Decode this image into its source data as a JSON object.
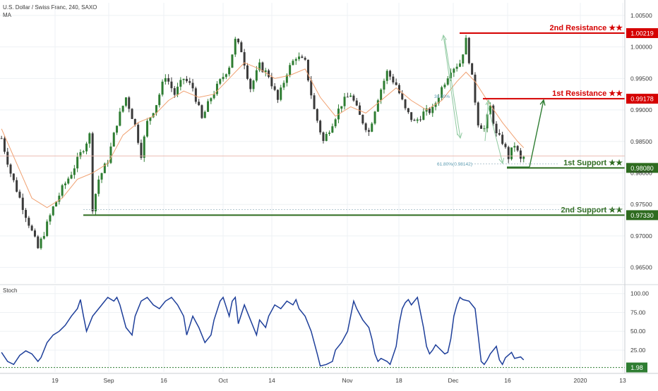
{
  "header": {
    "symbol_line": "U.S. Dollar / Swiss Franc, 240, SAXO",
    "indicator_line": "MA"
  },
  "stoch_pane": {
    "title": "Stoch",
    "current_value_label": "1.98"
  },
  "colors": {
    "candle_up": "#2e7d32",
    "candle_down": "#3a3a3a",
    "ma_line": "#f0a070",
    "stoch_line": "#1e3f9a",
    "resistance": "#d50000",
    "support": "#2e6b1f",
    "projection_green": "#2e7d32",
    "fib_label": "#5a9ab0",
    "grid": "#eef1f4",
    "axis_text": "#3a3a3a"
  },
  "chart_data": [
    {
      "type": "candlestick",
      "title": "U.S. Dollar / Swiss Franc, 240, SAXO",
      "price_axis_ticks": [
        "1.00500",
        "1.00000",
        "0.99500",
        "0.99000",
        "0.98500",
        "0.98000",
        "0.97500",
        "0.97000",
        "0.96500"
      ],
      "time_axis_labels": [
        "19",
        "Sep",
        "16",
        "Oct",
        "14",
        "Nov",
        "18",
        "Dec",
        "16",
        "2020",
        "13"
      ],
      "ylim": [
        0.9625,
        1.007
      ],
      "levels": [
        {
          "label": "2nd Resistance ★★",
          "value": 1.00219,
          "value_label": "1.00219",
          "kind": "resistance"
        },
        {
          "label": "1st Resistance ★★",
          "value": 0.99178,
          "value_label": "0.99178",
          "kind": "resistance"
        },
        {
          "label": "1st Support ★★",
          "value": 0.9808,
          "value_label": "0.98080",
          "kind": "support"
        },
        {
          "label": "2nd Support ★★",
          "value": 0.9733,
          "value_label": "0.97330",
          "kind": "support"
        }
      ],
      "fib_labels": [
        "38.20%",
        "61.80%(0.98142)"
      ],
      "closing_path": [
        [
          0,
          0.9855
        ],
        [
          3,
          0.98
        ],
        [
          6,
          0.976
        ],
        [
          9,
          0.972
        ],
        [
          12,
          0.968
        ],
        [
          14,
          0.9705
        ],
        [
          17,
          0.9745
        ],
        [
          20,
          0.9775
        ],
        [
          23,
          0.98
        ],
        [
          26,
          0.983
        ],
        [
          29,
          0.986
        ],
        [
          30,
          0.9745
        ],
        [
          32,
          0.979
        ],
        [
          35,
          0.982
        ],
        [
          38,
          0.988
        ],
        [
          41,
          0.992
        ],
        [
          44,
          0.9875
        ],
        [
          46,
          0.983
        ],
        [
          48,
          0.988
        ],
        [
          51,
          0.991
        ],
        [
          54,
          0.9955
        ],
        [
          57,
          0.9925
        ],
        [
          60,
          0.995
        ],
        [
          63,
          0.9935
        ],
        [
          66,
          0.9885
        ],
        [
          69,
          0.992
        ],
        [
          72,
          0.9945
        ],
        [
          75,
          0.997
        ],
        [
          77,
          1.001
        ],
        [
          79,
          0.9995
        ],
        [
          82,
          0.9935
        ],
        [
          85,
          0.997
        ],
        [
          88,
          0.9955
        ],
        [
          91,
          0.9915
        ],
        [
          94,
          0.996
        ],
        [
          97,
          0.9985
        ],
        [
          100,
          0.9975
        ],
        [
          103,
          0.99
        ],
        [
          106,
          0.985
        ],
        [
          109,
          0.988
        ],
        [
          112,
          0.991
        ],
        [
          115,
          0.9925
        ],
        [
          118,
          0.989
        ],
        [
          121,
          0.9865
        ],
        [
          124,
          0.992
        ],
        [
          127,
          0.996
        ],
        [
          130,
          0.994
        ],
        [
          133,
          0.99
        ],
        [
          136,
          0.988
        ],
        [
          139,
          0.9895
        ],
        [
          142,
          0.99
        ],
        [
          145,
          0.9935
        ],
        [
          148,
          0.9965
        ],
        [
          151,
          0.9975
        ],
        [
          153,
          1.001
        ],
        [
          155,
          0.995
        ],
        [
          157,
          0.988
        ],
        [
          159,
          0.987
        ],
        [
          161,
          0.9905
        ],
        [
          163,
          0.986
        ],
        [
          165,
          0.985
        ],
        [
          167,
          0.9825
        ],
        [
          169,
          0.9845
        ],
        [
          171,
          0.982
        ],
        [
          172,
          0.9825
        ]
      ],
      "ma_path": [
        [
          0,
          0.987
        ],
        [
          5,
          0.9815
        ],
        [
          10,
          0.976
        ],
        [
          15,
          0.9745
        ],
        [
          20,
          0.976
        ],
        [
          25,
          0.979
        ],
        [
          30,
          0.98
        ],
        [
          35,
          0.9815
        ],
        [
          40,
          0.986
        ],
        [
          45,
          0.988
        ],
        [
          50,
          0.989
        ],
        [
          55,
          0.9915
        ],
        [
          60,
          0.993
        ],
        [
          65,
          0.992
        ],
        [
          70,
          0.9925
        ],
        [
          75,
          0.995
        ],
        [
          80,
          0.9975
        ],
        [
          85,
          0.9965
        ],
        [
          90,
          0.995
        ],
        [
          95,
          0.9955
        ],
        [
          100,
          0.9965
        ],
        [
          105,
          0.992
        ],
        [
          110,
          0.989
        ],
        [
          115,
          0.9905
        ],
        [
          120,
          0.9895
        ],
        [
          125,
          0.9915
        ],
        [
          130,
          0.9935
        ],
        [
          135,
          0.9915
        ],
        [
          140,
          0.99
        ],
        [
          145,
          0.9915
        ],
        [
          150,
          0.9945
        ],
        [
          153,
          0.996
        ],
        [
          156,
          0.9945
        ],
        [
          160,
          0.9915
        ],
        [
          165,
          0.988
        ],
        [
          170,
          0.985
        ],
        [
          172,
          0.984
        ]
      ],
      "bar_count": 172
    },
    {
      "type": "line",
      "title": "Stoch",
      "ylim": [
        -4,
        110
      ],
      "y_ticks": [
        "100.00",
        "75.00",
        "50.00",
        "25.00"
      ],
      "reference_level": 1.98,
      "series": [
        {
          "values": [
            [
              0,
              22
            ],
            [
              2,
              10
            ],
            [
              4,
              6
            ],
            [
              6,
              18
            ],
            [
              8,
              24
            ],
            [
              10,
              20
            ],
            [
              12,
              10
            ],
            [
              13,
              15
            ],
            [
              15,
              35
            ],
            [
              17,
              45
            ],
            [
              19,
              50
            ],
            [
              21,
              58
            ],
            [
              23,
              70
            ],
            [
              25,
              80
            ],
            [
              26,
              92
            ],
            [
              27,
              70
            ],
            [
              28,
              50
            ],
            [
              30,
              70
            ],
            [
              32,
              80
            ],
            [
              34,
              90
            ],
            [
              35,
              95
            ],
            [
              37,
              90
            ],
            [
              38,
              95
            ],
            [
              39,
              85
            ],
            [
              41,
              55
            ],
            [
              43,
              45
            ],
            [
              44,
              70
            ],
            [
              46,
              90
            ],
            [
              48,
              95
            ],
            [
              50,
              85
            ],
            [
              52,
              80
            ],
            [
              54,
              90
            ],
            [
              56,
              95
            ],
            [
              58,
              85
            ],
            [
              60,
              70
            ],
            [
              61,
              45
            ],
            [
              63,
              70
            ],
            [
              65,
              55
            ],
            [
              67,
              35
            ],
            [
              69,
              45
            ],
            [
              70,
              65
            ],
            [
              72,
              90
            ],
            [
              73,
              95
            ],
            [
              75,
              70
            ],
            [
              76,
              90
            ],
            [
              77,
              95
            ],
            [
              78,
              60
            ],
            [
              80,
              85
            ],
            [
              82,
              65
            ],
            [
              84,
              45
            ],
            [
              85,
              65
            ],
            [
              87,
              55
            ],
            [
              88,
              70
            ],
            [
              90,
              85
            ],
            [
              92,
              80
            ],
            [
              94,
              90
            ],
            [
              96,
              85
            ],
            [
              97,
              92
            ],
            [
              98,
              80
            ],
            [
              100,
              70
            ],
            [
              102,
              50
            ],
            [
              104,
              20
            ],
            [
              105,
              4
            ],
            [
              107,
              6
            ],
            [
              109,
              10
            ],
            [
              110,
              25
            ],
            [
              112,
              35
            ],
            [
              114,
              50
            ],
            [
              115,
              70
            ],
            [
              116,
              90
            ],
            [
              117,
              80
            ],
            [
              119,
              65
            ],
            [
              121,
              55
            ],
            [
              122,
              40
            ],
            [
              123,
              20
            ],
            [
              124,
              10
            ],
            [
              125,
              14
            ],
            [
              127,
              10
            ],
            [
              128,
              6
            ],
            [
              130,
              30
            ],
            [
              131,
              60
            ],
            [
              132,
              80
            ],
            [
              133,
              88
            ],
            [
              134,
              92
            ],
            [
              135,
              85
            ],
            [
              137,
              95
            ],
            [
              138,
              75
            ],
            [
              139,
              55
            ],
            [
              140,
              30
            ],
            [
              141,
              20
            ],
            [
              142,
              25
            ],
            [
              143,
              32
            ],
            [
              144,
              28
            ],
            [
              146,
              20
            ],
            [
              147,
              22
            ],
            [
              148,
              40
            ],
            [
              149,
              70
            ],
            [
              150,
              85
            ],
            [
              151,
              95
            ],
            [
              152,
              92
            ],
            [
              154,
              90
            ],
            [
              156,
              80
            ],
            [
              157,
              45
            ],
            [
              158,
              10
            ],
            [
              159,
              6
            ],
            [
              160,
              12
            ],
            [
              161,
              20
            ],
            [
              163,
              30
            ],
            [
              164,
              12
            ],
            [
              165,
              6
            ],
            [
              166,
              15
            ],
            [
              168,
              22
            ],
            [
              169,
              14
            ],
            [
              171,
              16
            ],
            [
              172,
              12
            ]
          ]
        }
      ]
    }
  ]
}
